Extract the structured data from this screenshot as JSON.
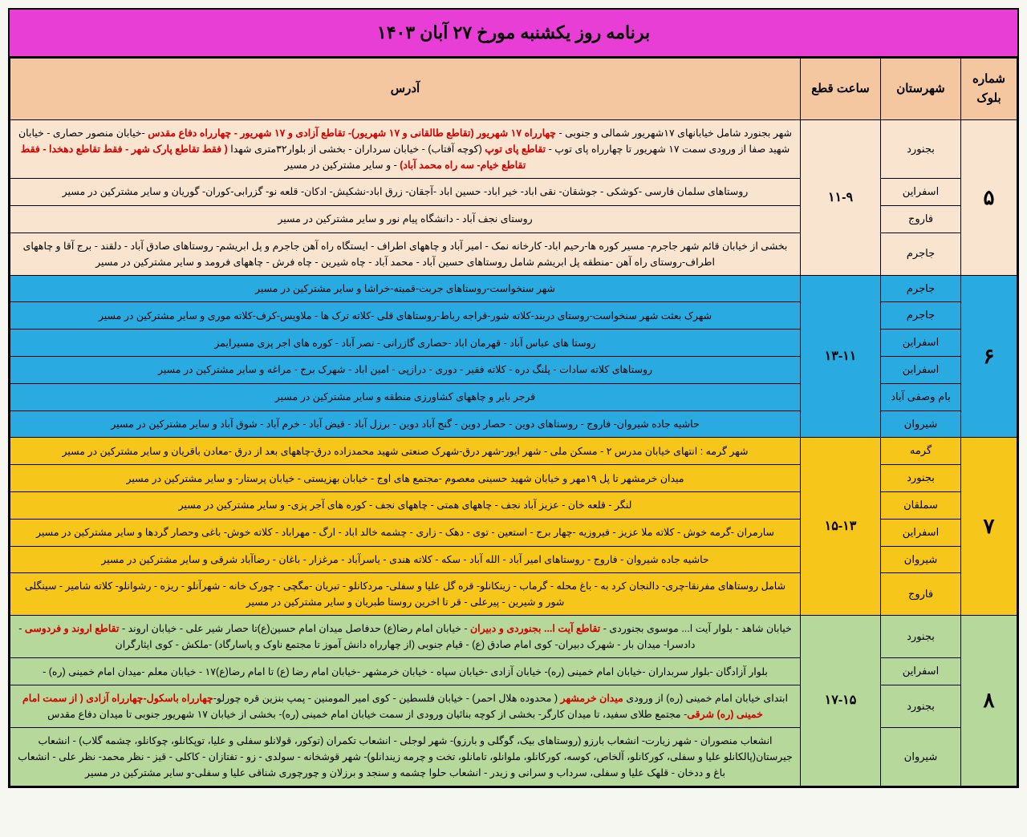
{
  "title": "برنامه روز یکشنبه مورخ ۲۷ آبان ۱۴۰۳",
  "columns": {
    "block": "شماره بلوک",
    "city": "شهرستان",
    "time": "ساعت قطع",
    "address": "آدرس"
  },
  "colors": {
    "title_bg": "#e83ed6",
    "header_bg": "#f4c7a1",
    "block5_bg": "#f9e4cf",
    "block6_bg": "#29abe2",
    "block7_bg": "#f7c61a",
    "block8_bg": "#b6d89a",
    "highlight": "#d00000"
  },
  "blocks": [
    {
      "id": "5",
      "num": "۵",
      "time": "۱۱-۹",
      "bg": "block5_bg",
      "rows": [
        {
          "city": "بجنورد",
          "addr_html": "شهر بجنورد شامل خیابانهای ۱۷شهریور شمالی و جنوبی - <span class='hl'>چهارراه ۱۷ شهریور (تقاطع طالقانی و ۱۷ شهریور)- تقاطع آزادی و ۱۷ شهریور - چهارراه دفاع مقدس</span> -خیابان منصور حصاری - خیابان شهید صفا از ورودی سمت ۱۷ شهریور تا چهارراه پای توپ - <span class='hl'>تقاطع پای توپ</span> (کوچه آفتاب) - خیابان سرداران - بخشی از بلوار۳۲متری شهدا <span class='hl'>( فقط تقاطع پارک شهر - فقط تقاطع دهخدا - فقط تقاطع خیام- سه راه محمد آباد)</span> - و سایر مشترکین در مسیر"
        },
        {
          "city": "اسفراین",
          "addr_html": "روستاهای سلمان فارسی -کوشکی - جوشقان- نقی اباد- خیر اباد- حسین اباد -آجقان- زرق اباد-نشکیش- ادکان- قلعه نو- گزرابی-کوران- گوریان و سایر مشترکین در مسیر"
        },
        {
          "city": "فاروج",
          "addr_html": "روستای نجف آباد - دانشگاه پیام نور و سایر مشترکین در مسیر"
        },
        {
          "city": "جاجرم",
          "addr_html": "بخشی از خیابان قائم شهر جاجرم- مسیر کوره ها-رحیم اباد- کارخانه نمک - امیر آباد و چاههای اطراف - ایستگاه راه آهن جاجرم و پل ابریشم- روستاهای صادق آباد - دلقند - برج آقا و چاههای اطراف-روستای راه آهن -منطقه پل ابریشم شامل روستاهای حسین آباد - محمد آباد - چاه شیرین - چاه فرش - چاههای فرومد و سایر مشترکین در مسیر"
        }
      ]
    },
    {
      "id": "6",
      "num": "۶",
      "time": "۱۳-۱۱",
      "bg": "block6_bg",
      "rows": [
        {
          "city": "جاجرم",
          "addr_html": "شهر سنخواست-روستاهای جربت-قمیته-خراشا و سایر مشترکین در مسیر"
        },
        {
          "city": "جاجرم",
          "addr_html": "شهرک بعثت شهر سنخواست-روستای دربند-کلاته شور-قراجه رباط-روستاهای قلی -کلاته ترک ها - ملاویس-کرف-کلاته موری و سایر مشترکین در مسیر"
        },
        {
          "city": "اسفراین",
          "addr_html": "روستا های عباس آباد - قهرمان اباد -حصاری گازرانی - نصر آباد - کوره های اجر پزی مسیرایمز"
        },
        {
          "city": "اسفراین",
          "addr_html": "روستاهای کلاته سادات - پلنگ دره - کلاته فقیر - دوری - درازپی - امین اباد - شهرک برج - مراغه و سایر مشترکین در مسیر"
        },
        {
          "city": "بام وصفی آباد",
          "addr_html": "قرجر بایر و چاههای کشاورزی منطقه و سایر مشترکین در مسیر"
        },
        {
          "city": "شیروان",
          "addr_html": "حاشیه جاده شیروان- فاروج - روستاهای دوین - حصار دوین - گنج آباد دوین - برزل آباد - قیض آباد - خرم آباد - شوق آباد و سایر مشترکین در مسیر"
        }
      ]
    },
    {
      "id": "7",
      "num": "۷",
      "time": "۱۵-۱۳",
      "bg": "block7_bg",
      "rows": [
        {
          "city": "گرمه",
          "addr_html": "شهر گرمه : انتهای خیابان مدرس ۲ - مسکن ملی - شهر ایور-شهر درق-شهرک صنعتی شهید محمدزاده درق-چاههای بعد از درق -معادن باقریان و سایر مشترکین در مسیر"
        },
        {
          "city": "بجنورد",
          "addr_html": "میدان خرمشهر تا پل ۱۹مهر و خیابان شهید حسینی معصوم -مجتمع های اوج - خیابان بهزیستی - خیابان پرستار- و سایر مشترکین در مسیر"
        },
        {
          "city": "سملقان",
          "addr_html": "لنگر - قلعه خان - عزیز آباد نجف - چاههای همتی - چاههای نجف - کوره های آجر پزی- و سایر مشترکین در مسیر"
        },
        {
          "city": "اسفراین",
          "addr_html": "سارمران -گرمه خوش - کلاته ملا عزیز - فیروزیه -چهار برج - استعین - توی - دهک - زاری - چشمه خالد اباد - ارگ - مهراباد - کلاته خوش- باغی وحصار گردها و سایر مشترکین در مسیر"
        },
        {
          "city": "شیروان",
          "addr_html": "حاشیه جاده شیروان - فاروج - روستاهای امیر آباد - الله آباد - سکه - کلاته هندی - یاسرآباد - مرغزار - باغان - رضاآباد شرقی و سایر مشترکین در مسیر"
        },
        {
          "city": "فاروج",
          "addr_html": "شامل روستاهای مفرنقا-چری- دالنجان کرد به - باغ محله - گرماب - زینکانلو- قره گل علیا و سفلی- مردکانلو - تبریان -مگچی - چورک خانه - شهرآنلو - ریزه - رشوانلو- کلاته شامیر - سینگلی شور و شیرین - پیرعلی - قر تا اخرین روستا طبریان و سایر مشترکین در مسیر"
        }
      ]
    },
    {
      "id": "8",
      "num": "۸",
      "time": "۱۷-۱۵",
      "bg": "block8_bg",
      "rows": [
        {
          "city": "بجنورد",
          "addr_html": "خیابان شاهد - بلوار آیت ا... موسوی بجنوردی - <span class='hl'>تقاطع آیت ا... بجنوردی و دبیران</span> - خیابان امام رضا(ع) حدفاصل میدان امام حسین(ع)تا حصار شیر علی - خیابان اروند - <span class='hl'>تقاطع اروند و فردوسی</span> - دادسرا- میدان بار - شهرک دبیران- کوی امام صادق (ع) - قیام جنوبی (از چهارراه دانش آموز تا مجتمع ناوک و پاسارگاد) -ملکش - کوی ایثارگران"
        },
        {
          "city": "اسفراین",
          "addr_html": "بلوار آزادگان -بلوار سربداران -خیابان امام خمینی (ره)- خیابان آزادی -خیابان سپاه - خیابان خرمشهر -خیابان امام رضا (ع) تا امام رضا(ع)۱۷ - خیابان معلم -میدان امام خمینی (ره) -"
        },
        {
          "city": "بجنورد",
          "addr_html": "ابتدای خیابان امام خمینی (ره) از ورودی <span class='hl'>میدان خرمشهر</span> ( محدوده هلال احمر) - خیابان فلسطین - کوی امیر المومنین - پمپ بنزین قره چورلو-<span class='hl'>چهارراه باسکول-چهارراه آزادی ( از سمت امام خمینی (ره) شرقی</span>- مجتمع طلای سفید، تا میدان کارگر- بخشی از کوچه بنائیان ورودی از سمت خیابان امام خمینی (ره)- بخشی از خیابان ۱۷ شهریور جنوبی تا میدان دفاع مقدس"
        },
        {
          "city": "شیروان",
          "addr_html": "انشعاب منصوران - شهر زیارت- انشعاب بارزو (روستاهای بیک، گوگلی و بارزو)- شهر لوجلی - انشعاب تکمران (توکور، قولانلو سفلی و علیا، توپکانلو، چوکانلو، چشمه گلاب) - انشعاب جیرستان(پالکانلو علیا و سفلی، کورکانلو، آلخاص، کوسه، کورکانلو، ملوانلو، تامانلو، تخت و چرمه زیندانلو)- شهر قوشخانه - سولدی - زو - تفتازان - کاکلی - قیز - نظر محمد- نظر علی - انشعاب باغ و ددخان - قلهک علیا و سفلی، سرداب و سرانی و زیدر - انشعاب حلوا چشمه و سنجد و برزلان و چورچوری شناقی علیا و سفلی-و سایر مشترکین در مسیر"
        }
      ]
    }
  ]
}
